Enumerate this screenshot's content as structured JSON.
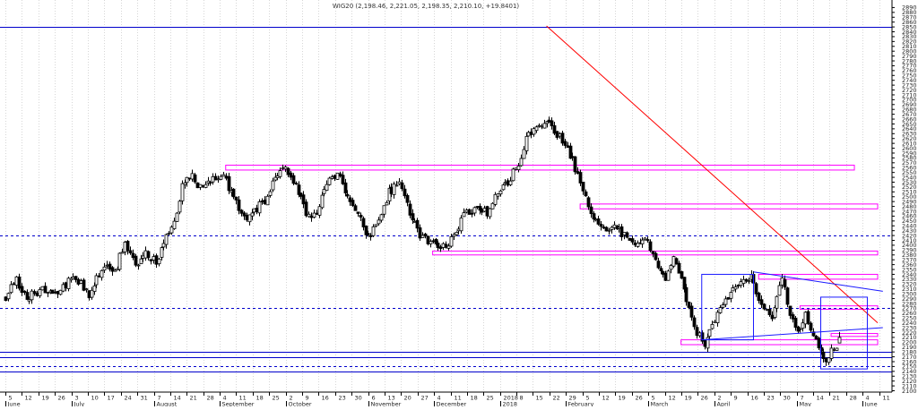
{
  "chart_data": {
    "type": "candlestick",
    "title": "WIG20 (2,198.46, 2,221.05, 2,198.35, 2,210.10, +19.8401)",
    "xlabel": "",
    "ylabel": "",
    "ylim": [
      2100,
      2900
    ],
    "y_ticks": [
      2100,
      2110,
      2120,
      2130,
      2140,
      2150,
      2160,
      2170,
      2180,
      2190,
      2200,
      2210,
      2220,
      2230,
      2240,
      2250,
      2260,
      2270,
      2280,
      2290,
      2300,
      2310,
      2320,
      2330,
      2340,
      2350,
      2360,
      2370,
      2380,
      2390,
      2400,
      2410,
      2420,
      2430,
      2440,
      2450,
      2460,
      2470,
      2480,
      2490,
      2500,
      2510,
      2520,
      2530,
      2540,
      2550,
      2560,
      2570,
      2580,
      2590,
      2600,
      2610,
      2620,
      2630,
      2640,
      2650,
      2660,
      2670,
      2680,
      2690,
      2700,
      2710,
      2720,
      2730,
      2740,
      2750,
      2760,
      2770,
      2780,
      2790,
      2800,
      2810,
      2820,
      2830,
      2840,
      2850,
      2860,
      2870,
      2880,
      2890
    ],
    "x_day_ticks": [
      "5",
      "12",
      "19",
      "26",
      "3",
      "10",
      "17",
      "24",
      "31",
      "7",
      "14",
      "21",
      "28",
      "4",
      "11",
      "18",
      "25",
      "2",
      "9",
      "16",
      "23",
      "30",
      "6",
      "13",
      "20",
      "27",
      "4",
      "11",
      "18",
      "25",
      "2018",
      "8",
      "15",
      "22",
      "29",
      "5",
      "12",
      "19",
      "26",
      "5",
      "12",
      "19",
      "26",
      "2",
      "9",
      "16",
      "23",
      "30",
      "7",
      "14",
      "21",
      "28",
      "4",
      "11"
    ],
    "x_month_labels": [
      "June",
      "July",
      "August",
      "September",
      "October",
      "November",
      "December",
      "2018",
      "February",
      "March",
      "April",
      "May",
      "June"
    ],
    "grid": true,
    "legend": "none",
    "colors": {
      "up": "#ffffff",
      "down": "#000000",
      "resistance": "#ff00ff",
      "support": "#0000cc",
      "trend": "#ff0000",
      "frame": "#1a1aff"
    },
    "guides": {
      "solid_levels": [
        2850,
        2180,
        2170,
        2140
      ],
      "dashed_levels": [
        2420,
        2270,
        2150
      ],
      "zones": [
        {
          "from_index": 85,
          "to_index": 328,
          "low": 2555,
          "high": 2565
        },
        {
          "from_index": 222,
          "to_index": 337,
          "low": 2475,
          "high": 2485
        },
        {
          "from_index": 165,
          "to_index": 337,
          "low": 2380,
          "high": 2388
        },
        {
          "from_index": 291,
          "to_index": 337,
          "low": 2330,
          "high": 2340
        },
        {
          "from_index": 261,
          "to_index": 337,
          "low": 2195,
          "high": 2205
        },
        {
          "from_index": 307,
          "to_index": 337,
          "low": 2268,
          "high": 2275
        },
        {
          "from_index": 319,
          "to_index": 337,
          "low": 2212,
          "high": 2218
        }
      ],
      "trendlines": [
        {
          "kind": "trend",
          "i1": 209,
          "v1": 2852,
          "i2": 337,
          "v2": 2240
        },
        {
          "kind": "support",
          "i1": 269,
          "v1": 2205,
          "i2": 339,
          "v2": 2230
        },
        {
          "kind": "support",
          "i1": 289,
          "v1": 2345,
          "i2": 339,
          "v2": 2305
        }
      ],
      "frames": [
        {
          "i1": 269,
          "i2": 289,
          "low": 2205,
          "high": 2340
        },
        {
          "i1": 315,
          "i2": 333,
          "low": 2145,
          "high": 2293
        }
      ]
    },
    "series": [
      {
        "name": "WIG20",
        "ohlc": []
      }
    ]
  }
}
